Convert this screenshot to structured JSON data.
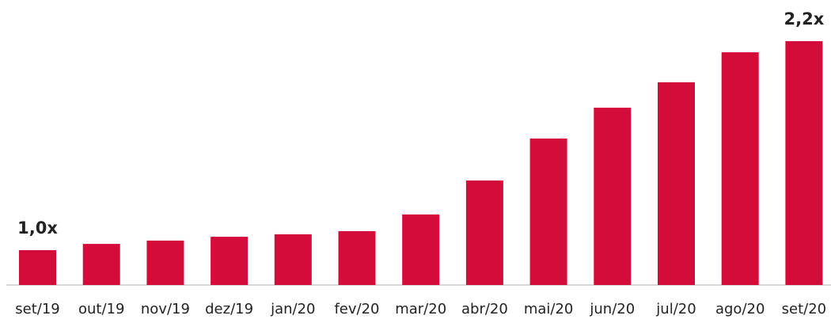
{
  "chart_data": {
    "type": "bar",
    "categories": [
      "set/19",
      "out/19",
      "nov/19",
      "dez/19",
      "jan/20",
      "fev/20",
      "mar/20",
      "abr/20",
      "mai/20",
      "jun/20",
      "jul/20",
      "ago/20",
      "set/20"
    ],
    "values": [
      1.0,
      1.036,
      1.055,
      1.077,
      1.091,
      1.109,
      1.205,
      1.4,
      1.641,
      1.818,
      1.964,
      2.136,
      2.2
    ],
    "value_labels": [
      "1,0x",
      null,
      null,
      null,
      null,
      null,
      null,
      null,
      null,
      null,
      null,
      null,
      "2,2x"
    ],
    "color": "#d50c3a",
    "ylim": [
      0.8,
      2.3
    ]
  }
}
